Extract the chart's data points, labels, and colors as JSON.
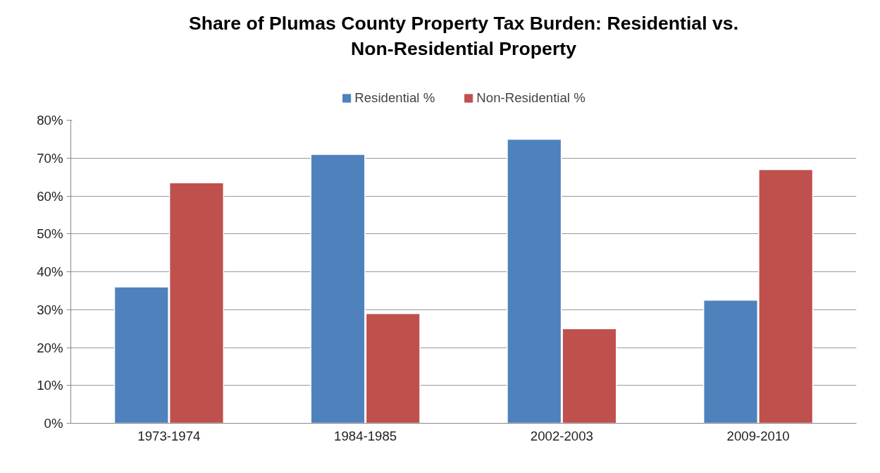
{
  "chart_data": {
    "type": "bar",
    "title": "Share of Plumas County Property Tax Burden: Residential vs.\nNon-Residential Property",
    "categories": [
      "1973-1974",
      "1984-1985",
      "2002-2003",
      "2009-2010"
    ],
    "series": [
      {
        "name": "Residential %",
        "color": "#4f81bd",
        "values": [
          36,
          71,
          75,
          32.5
        ]
      },
      {
        "name": "Non-Residential %",
        "color": "#c0504d",
        "values": [
          63.5,
          29,
          25,
          67
        ]
      }
    ],
    "ylim": [
      0,
      80
    ],
    "yticks": [
      {
        "value": 0,
        "label": "0%"
      },
      {
        "value": 10,
        "label": "10%"
      },
      {
        "value": 20,
        "label": "20%"
      },
      {
        "value": 30,
        "label": "30%"
      },
      {
        "value": 40,
        "label": "40%"
      },
      {
        "value": 50,
        "label": "50%"
      },
      {
        "value": 60,
        "label": "60%"
      },
      {
        "value": 70,
        "label": "70%"
      },
      {
        "value": 80,
        "label": "80%"
      }
    ],
    "grid": "y",
    "legend": "top"
  }
}
